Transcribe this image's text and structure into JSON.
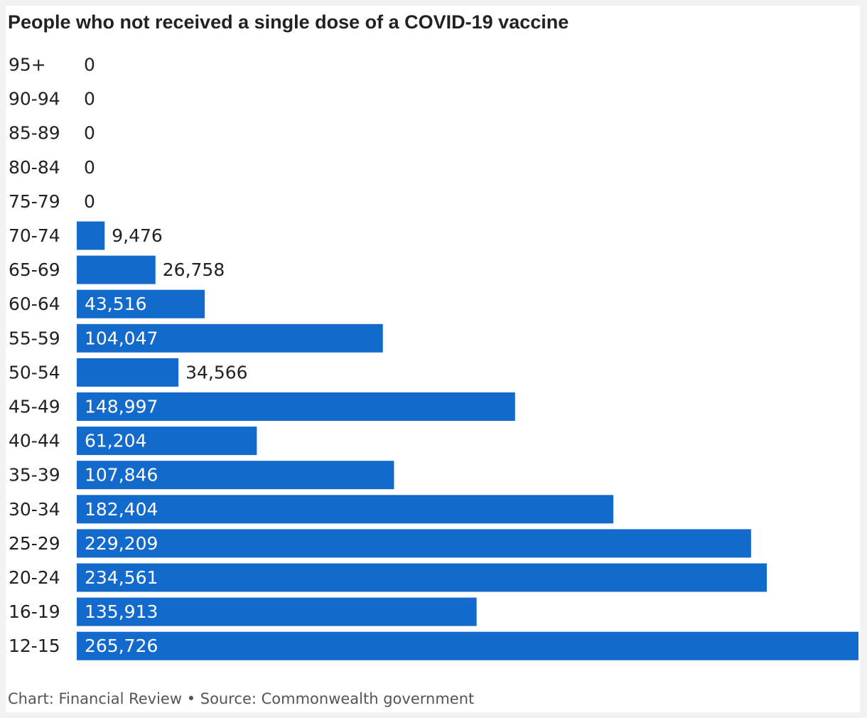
{
  "chart_data": {
    "type": "bar",
    "orientation": "horizontal",
    "title": "People who not received a single dose of a COVID-19 vaccine",
    "categories": [
      "95+",
      "90-94",
      "85-89",
      "80-84",
      "75-79",
      "70-74",
      "65-69",
      "60-64",
      "55-59",
      "50-54",
      "45-49",
      "40-44",
      "35-39",
      "30-34",
      "25-29",
      "20-24",
      "16-19",
      "12-15"
    ],
    "values": [
      0,
      0,
      0,
      0,
      0,
      9476,
      26758,
      43516,
      104047,
      34566,
      148997,
      61204,
      107846,
      182404,
      229209,
      234561,
      135913,
      265726
    ],
    "value_labels": [
      "0",
      "0",
      "0",
      "0",
      "0",
      "9,476",
      "26,758",
      "43,516",
      "104,047",
      "34,566",
      "148,997",
      "61,204",
      "107,846",
      "182,404",
      "229,209",
      "234,561",
      "135,913",
      "265,726"
    ],
    "xlim": [
      0,
      265726
    ],
    "grid": false,
    "legend": "none",
    "bar_color": "#116acc",
    "label_color_inside": "#ffffff",
    "label_color_outside": "#222222",
    "category_label_color": "#222222"
  },
  "footer": {
    "credit": "Chart: Financial Review • Source: Commonwealth government"
  }
}
